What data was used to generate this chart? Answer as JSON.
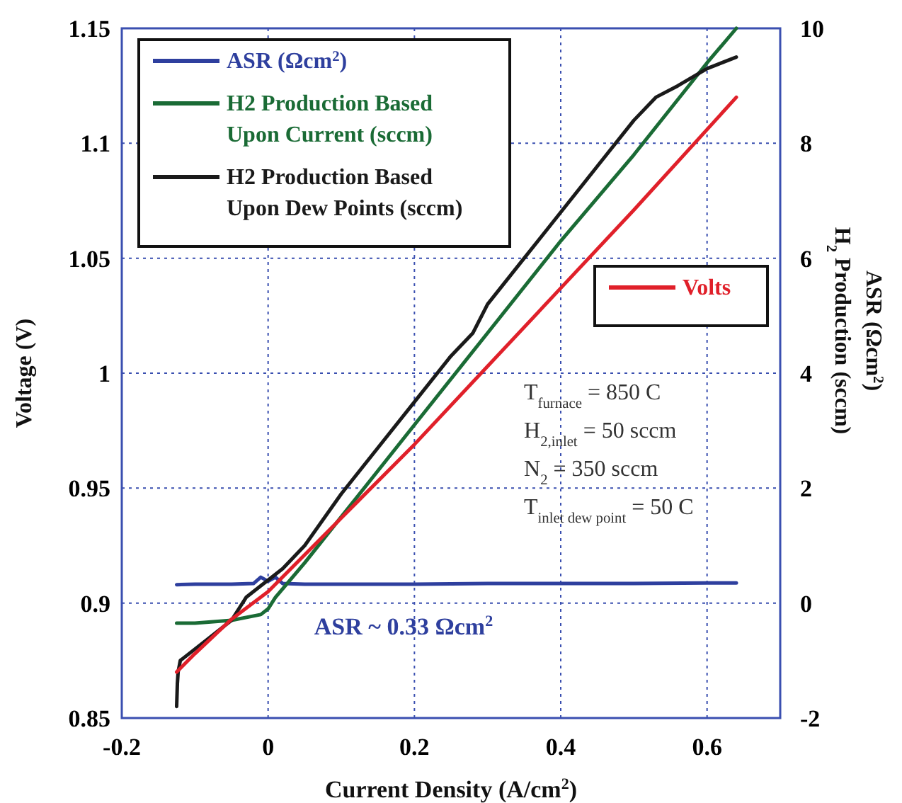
{
  "chart_data": {
    "type": "line",
    "xlabel": "Current Density (A/cm$^{2}$)",
    "ylabel": "Voltage (V)",
    "y2label": "ASR (Ωcm$^{2}$)\nH$_{2}$ Production (sccm)",
    "xlim": [
      -0.2,
      0.7
    ],
    "xticks": [
      -0.2,
      0,
      0.2,
      0.4,
      0.6
    ],
    "ylim": [
      0.85,
      1.15
    ],
    "yticks": [
      0.85,
      0.9,
      0.95,
      1,
      1.05,
      1.1,
      1.15
    ],
    "y2lim": [
      -2,
      10
    ],
    "y2ticks": [
      -2,
      0,
      2,
      4,
      6,
      8,
      10
    ],
    "grid": true,
    "legend": "top left",
    "line_style": "solid",
    "marker": "none",
    "series": [
      {
        "name": "ASR (Ωcm$^{2}$)",
        "color": "#2e3f9e",
        "axis": "y2",
        "x": [
          -0.125,
          -0.1,
          -0.05,
          -0.02,
          -0.01,
          0,
          0.01,
          0.02,
          0.05,
          0.1,
          0.2,
          0.3,
          0.4,
          0.5,
          0.6,
          0.64
        ],
        "values": [
          0.32,
          0.33,
          0.33,
          0.34,
          0.45,
          0.38,
          0.45,
          0.34,
          0.33,
          0.33,
          0.33,
          0.34,
          0.34,
          0.34,
          0.35,
          0.35
        ]
      },
      {
        "name": "H2 Production Based Upon Current (sccm)",
        "color": "#1a6b35",
        "axis": "y2",
        "x": [
          -0.125,
          -0.1,
          -0.05,
          -0.01,
          0,
          0.01,
          0.05,
          0.1,
          0.2,
          0.3,
          0.4,
          0.5,
          0.6,
          0.64
        ],
        "values": [
          -0.35,
          -0.35,
          -0.3,
          -0.2,
          -0.1,
          0.1,
          0.7,
          1.5,
          3.1,
          4.7,
          6.3,
          7.8,
          9.4,
          10
        ]
      },
      {
        "name": "H2 Production Based Upon Dew Points (sccm)",
        "color": "#1a1a1a",
        "axis": "y2",
        "x": [
          -0.125,
          -0.124,
          -0.123,
          -0.12,
          -0.1,
          -0.08,
          -0.05,
          -0.03,
          -0.01,
          0,
          0.02,
          0.05,
          0.1,
          0.15,
          0.2,
          0.25,
          0.28,
          0.3,
          0.35,
          0.4,
          0.45,
          0.5,
          0.53,
          0.56,
          0.6,
          0.64
        ],
        "values": [
          -1.8,
          -1.4,
          -1.2,
          -1.0,
          -0.8,
          -0.6,
          -0.3,
          0.1,
          0.3,
          0.4,
          0.6,
          1.0,
          1.9,
          2.7,
          3.5,
          4.3,
          4.7,
          5.2,
          6.0,
          6.8,
          7.6,
          8.4,
          8.8,
          9.0,
          9.3,
          9.5
        ]
      },
      {
        "name": "Volts",
        "color": "#e0202a",
        "x": [
          -0.125,
          -0.1,
          -0.05,
          0,
          0.1,
          0.2,
          0.3,
          0.4,
          0.5,
          0.6,
          0.64
        ],
        "values": [
          0.87,
          0.878,
          0.893,
          0.905,
          0.937,
          0.969,
          1.003,
          1.037,
          1.071,
          1.106,
          1.12
        ]
      }
    ],
    "annotations": [
      "ASR ~ 0.33 Ωcm$^{2}$",
      "T$_{furnace}$ = 850 C",
      "H$_{2,inlet}$ = 50 sccm",
      "N$_{2}$ = 350 sccm",
      "T$_{inlet dew point}$ = 50 C"
    ]
  }
}
